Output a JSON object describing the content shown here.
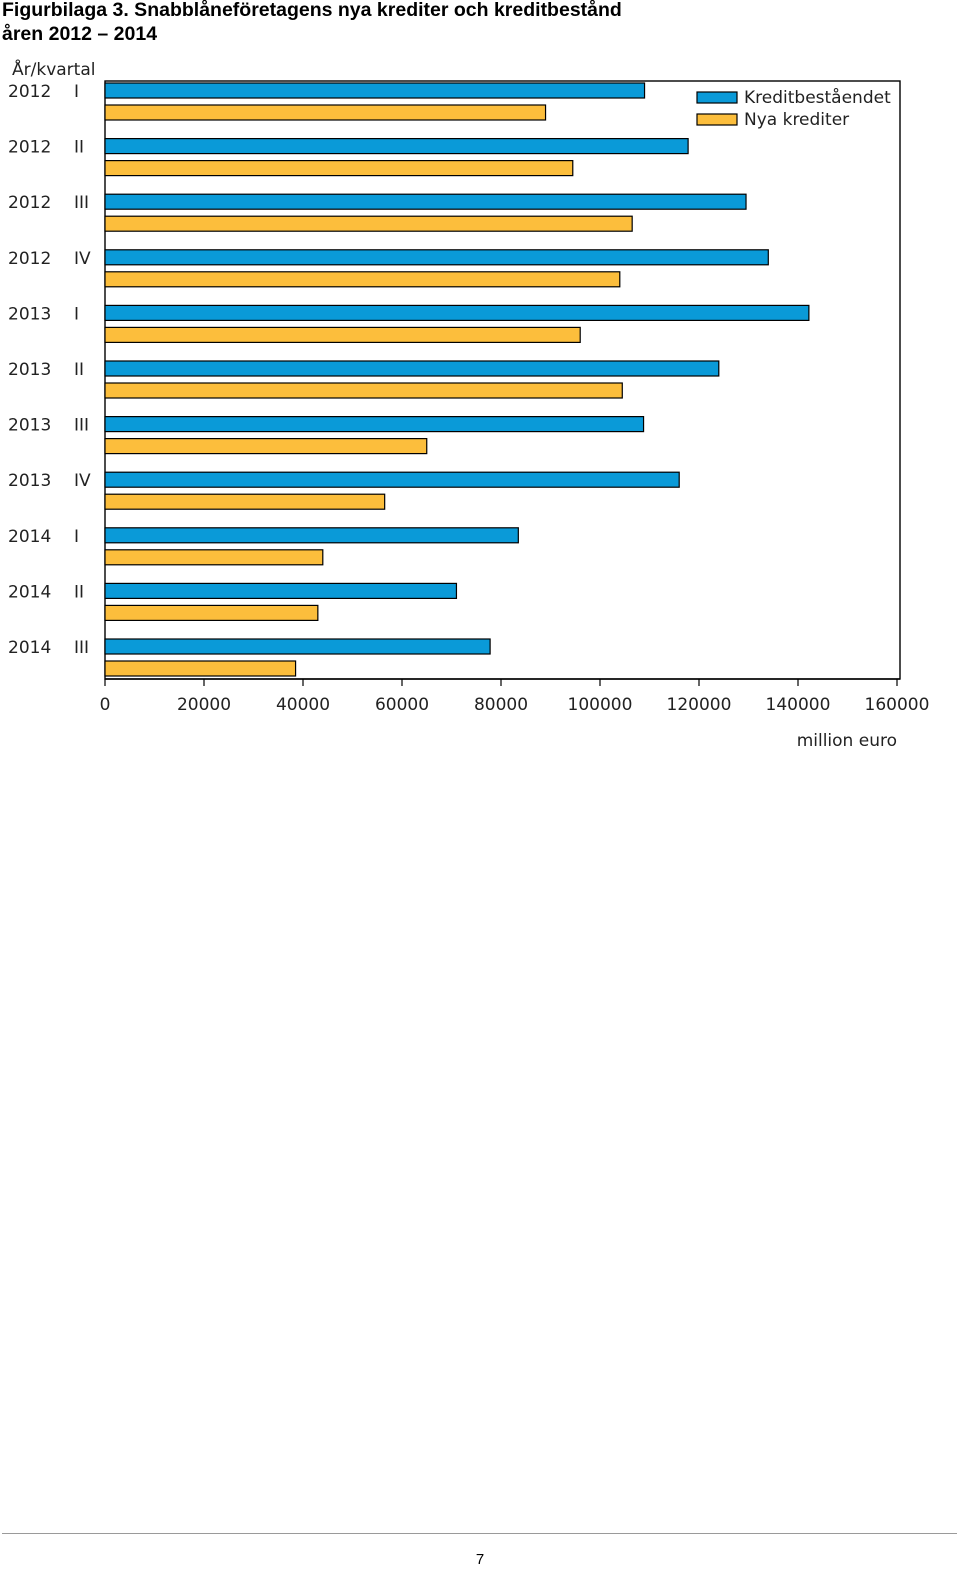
{
  "figure": {
    "title_line1": "Figurbilaga 3. Snabblåneföretagens nya krediter och kreditbestånd",
    "title_line2": "åren 2012 – 2014"
  },
  "chart_data": {
    "type": "bar",
    "orientation": "horizontal",
    "category_axis_label": "År/kvartal",
    "value_axis_label": "million euro",
    "categories": [
      {
        "year": "2012",
        "quarter": "I"
      },
      {
        "year": "2012",
        "quarter": "II"
      },
      {
        "year": "2012",
        "quarter": "III"
      },
      {
        "year": "2012",
        "quarter": "IV"
      },
      {
        "year": "2013",
        "quarter": "I"
      },
      {
        "year": "2013",
        "quarter": "II"
      },
      {
        "year": "2013",
        "quarter": "III"
      },
      {
        "year": "2013",
        "quarter": "IV"
      },
      {
        "year": "2014",
        "quarter": "I"
      },
      {
        "year": "2014",
        "quarter": "II"
      },
      {
        "year": "2014",
        "quarter": "III"
      }
    ],
    "series": [
      {
        "name": "Kreditbeståendet",
        "color": "#0a9ad8",
        "values": [
          109000,
          117800,
          129500,
          134000,
          142200,
          124000,
          108800,
          116000,
          83500,
          71000,
          77800
        ]
      },
      {
        "name": "Nya krediter",
        "color": "#fcbe3c",
        "values": [
          89000,
          94500,
          106500,
          104000,
          96000,
          104500,
          65000,
          56500,
          44000,
          43000,
          38500
        ]
      }
    ],
    "xlim": [
      0,
      160000
    ],
    "ticks": [
      0,
      20000,
      40000,
      60000,
      80000,
      100000,
      120000,
      140000,
      160000
    ],
    "tick_labels": [
      "0",
      "20000",
      "40000",
      "60000",
      "80000",
      "100000",
      "120000",
      "140000",
      "160000"
    ],
    "grid": false,
    "legend_position": "top-right"
  },
  "page": {
    "number": "7"
  }
}
